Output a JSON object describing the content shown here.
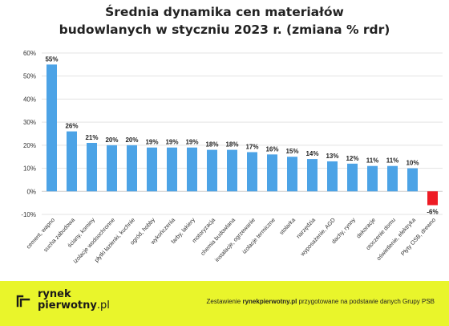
{
  "chart_data": {
    "type": "bar",
    "title": "Średnia dynamika cen materiałów budowlanych w styczniu 2023 r. (zmiana % rdr)",
    "title_lines": [
      "Średnia dynamika cen materiałów",
      "budowlanych w styczniu 2023 r. (zmiana % rdr)"
    ],
    "categories": [
      "cement, wapno",
      "sucha zabudowa",
      "ściany, kominy",
      "izolacje wodoochronne",
      "płytki łazienki, kuchnie",
      "ogród, hobby",
      "wykończenia",
      "farby, lakiery",
      "motoryzacja",
      "chemia budowlana",
      "instalacje, ogrzewanie",
      "izolacje termiczne",
      "stolarka",
      "narzędzia",
      "wyposażenie, AGD",
      "dachy, rynny",
      "dekoracje",
      "otoczenie domu",
      "oświetlenie, elektryka",
      "Płyty OSB, drewno"
    ],
    "values": [
      55,
      26,
      21,
      20,
      20,
      19,
      19,
      19,
      18,
      18,
      17,
      16,
      15,
      14,
      13,
      12,
      11,
      11,
      10,
      -6
    ],
    "data_labels": [
      "55%",
      "26%",
      "21%",
      "20%",
      "20%",
      "19%",
      "19%",
      "19%",
      "18%",
      "18%",
      "17%",
      "16%",
      "15%",
      "14%",
      "13%",
      "12%",
      "11%",
      "11%",
      "10%",
      "-6%"
    ],
    "yticks": [
      -10,
      0,
      10,
      20,
      30,
      40,
      50,
      60
    ],
    "ytick_labels": [
      "-10%",
      "0%",
      "10%",
      "20%",
      "30%",
      "40%",
      "50%",
      "60%"
    ],
    "ylim": [
      -10,
      60
    ],
    "xlabel": "",
    "ylabel": "",
    "grid": true,
    "colors": {
      "positive": "#4ca3e6",
      "negative": "#ee1b24",
      "grid": "#e3e3e3",
      "text": "#333333"
    }
  },
  "footer": {
    "brand_line1": "rynek",
    "brand_line2": "pierwotny",
    "brand_suffix": ".pl",
    "credit_prefix": "Zestawienie ",
    "credit_brand": "rynekpierwotny.pl",
    "credit_suffix": " przygotowane na podstawie danych Grupy PSB",
    "background": "#e9f52b"
  }
}
